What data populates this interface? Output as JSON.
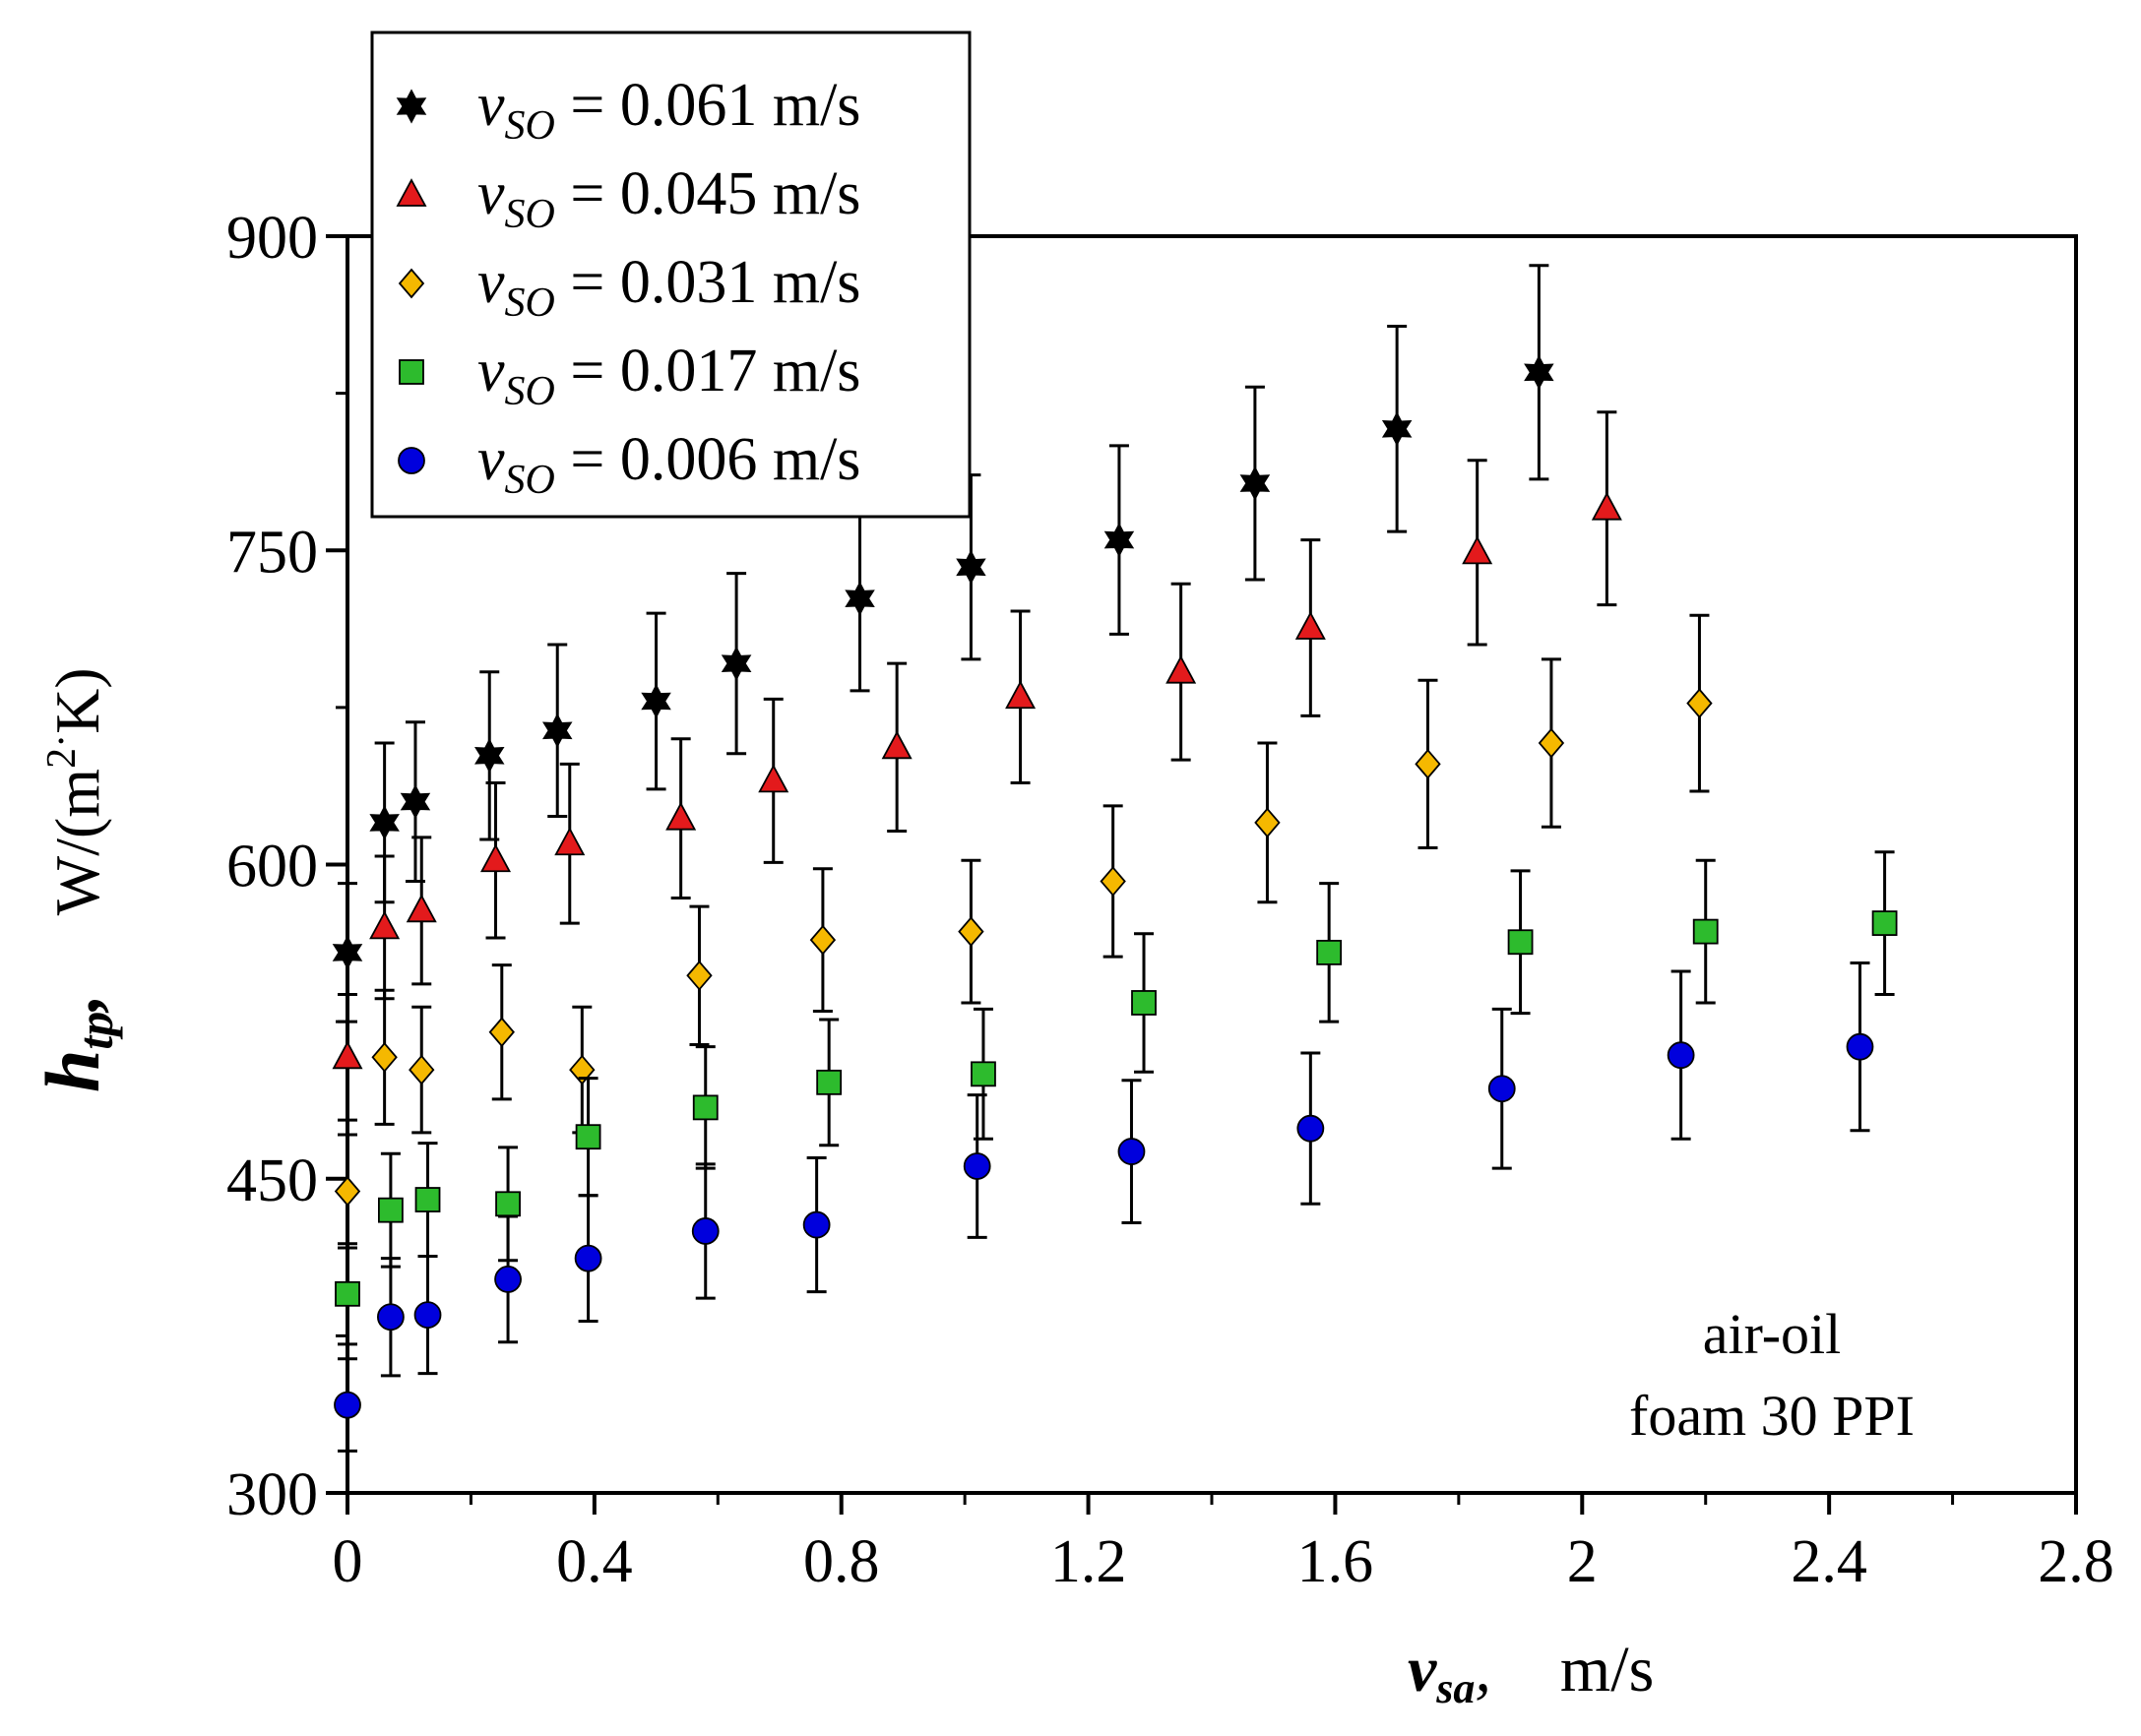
{
  "chart_data": {
    "type": "scatter",
    "xlim": [
      0,
      2.8
    ],
    "ylim": [
      300,
      900
    ],
    "x_ticks": [
      "0",
      "0.4",
      "0.8",
      "1.2",
      "1.6",
      "2",
      "2.4",
      "2.8"
    ],
    "y_ticks": [
      "300",
      "450",
      "600",
      "750",
      "900"
    ],
    "xlabel": {
      "symbol": "v",
      "subscript": "sa",
      "sep": ",",
      "unit": "m/s"
    },
    "ylabel": {
      "symbol": "h",
      "subscript": "tp",
      "sep": ",",
      "unit_prefix": "W/(m",
      "unit_sup": "2",
      "unit_dot": "·",
      "unit_suffix": "K)"
    },
    "annotation": [
      "air-oil",
      "foam 30 PPI"
    ],
    "series": [
      {
        "name": "v_SO = 0.061 m/s",
        "label_symbol": "v",
        "label_sub": "SO",
        "label_value": " = 0.061 m/s",
        "marker": "star",
        "color": "#000000",
        "x": [
          0.0,
          0.06,
          0.11,
          0.23,
          0.34,
          0.5,
          0.63,
          0.83,
          1.01,
          1.25,
          1.47,
          1.7,
          1.93
        ],
        "y": [
          558,
          620,
          630,
          652,
          664,
          678,
          696,
          727,
          742,
          755,
          782,
          808,
          835
        ],
        "err": [
          33,
          38,
          38,
          40,
          41,
          42,
          43,
          44,
          44,
          45,
          46,
          49,
          51
        ]
      },
      {
        "name": "v_SO = 0.045 m/s",
        "label_symbol": "v",
        "label_sub": "SO",
        "label_value": " = 0.045 m/s",
        "marker": "triangle",
        "color": "#e31a1c",
        "x": [
          0.0,
          0.06,
          0.12,
          0.24,
          0.36,
          0.54,
          0.69,
          0.89,
          1.09,
          1.35,
          1.56,
          1.83,
          2.04
        ],
        "y": [
          508,
          570,
          578,
          602,
          610,
          622,
          640,
          656,
          680,
          692,
          713,
          749,
          770
        ],
        "err": [
          30,
          34,
          35,
          37,
          38,
          38,
          39,
          40,
          41,
          42,
          42,
          44,
          46
        ]
      },
      {
        "name": "v_SO = 0.031 m/s",
        "label_symbol": "v",
        "label_sub": "SO",
        "label_value": " = 0.031 m/s",
        "marker": "diamond",
        "color": "#f5b800",
        "x": [
          0.0,
          0.06,
          0.12,
          0.25,
          0.38,
          0.57,
          0.77,
          1.01,
          1.24,
          1.49,
          1.75,
          1.95,
          2.19
        ],
        "y": [
          444,
          508,
          502,
          520,
          502,
          547,
          564,
          568,
          592,
          620,
          648,
          658,
          677
        ],
        "err": [
          27,
          32,
          30,
          32,
          30,
          33,
          34,
          34,
          36,
          38,
          40,
          40,
          42
        ]
      },
      {
        "name": "v_SO = 0.017 m/s",
        "label_symbol": "v",
        "label_sub": "SO",
        "label_value": " = 0.017 m/s",
        "marker": "square",
        "color": "#2dbb2d",
        "x": [
          0.0,
          0.07,
          0.13,
          0.26,
          0.39,
          0.58,
          0.78,
          1.03,
          1.29,
          1.59,
          1.9,
          2.2,
          2.49
        ],
        "y": [
          395,
          435,
          440,
          438,
          470,
          484,
          496,
          500,
          534,
          558,
          563,
          568,
          572
        ],
        "err": [
          24,
          27,
          27,
          27,
          28,
          29,
          30,
          31,
          33,
          33,
          34,
          34,
          34
        ]
      },
      {
        "name": "v_SO = 0.006 m/s",
        "label_symbol": "v",
        "label_sub": "SO",
        "label_value": " = 0.006 m/s",
        "marker": "circle",
        "color": "#0000dd",
        "x": [
          0.0,
          0.07,
          0.13,
          0.26,
          0.39,
          0.58,
          0.76,
          1.02,
          1.27,
          1.56,
          1.87,
          2.16,
          2.45
        ],
        "y": [
          342,
          384,
          385,
          402,
          412,
          425,
          428,
          456,
          463,
          474,
          493,
          509,
          513
        ],
        "err": [
          22,
          28,
          28,
          30,
          30,
          32,
          32,
          34,
          34,
          36,
          38,
          40,
          40
        ]
      }
    ]
  }
}
